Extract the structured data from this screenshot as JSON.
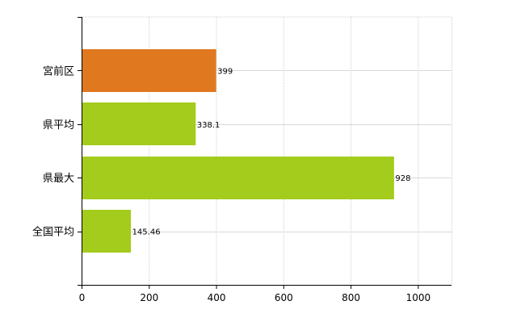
{
  "chart_data": {
    "type": "bar",
    "orientation": "horizontal",
    "categories": [
      "宮前区",
      "県平均",
      "県最大",
      "全国平均"
    ],
    "values": [
      399,
      338.1,
      928,
      145.46
    ],
    "value_labels": [
      "399",
      "338.1",
      "928",
      "145.46"
    ],
    "bar_colors": [
      "#e07820",
      "#a4cc1c",
      "#a4cc1c",
      "#a4cc1c"
    ],
    "title": "",
    "xlabel": "",
    "ylabel": "",
    "xlim": [
      0,
      1100
    ],
    "x_ticks": [
      0,
      200,
      400,
      600,
      800,
      1000
    ],
    "x_tick_labels": [
      "0",
      "200",
      "400",
      "600",
      "800",
      "1000"
    ],
    "grid": true,
    "legend": "none"
  }
}
